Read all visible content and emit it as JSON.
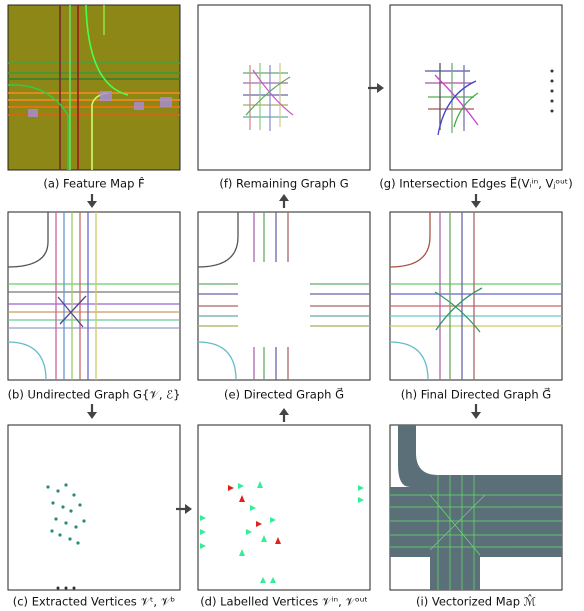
{
  "captions": {
    "a": "(a) Feature Map F̂",
    "f": "(f) Remaining Graph G",
    "g": "(g) Intersection Edges E⃗(Vᵢⁱⁿ, Vⱼᵒᵘᵗ)",
    "b": "(b) Undirected Graph G{𝒱, ℰ}",
    "e": "(e) Directed Graph G⃗",
    "h": "(h) Final Directed Graph G⃗",
    "c": "(c) Extracted Vertices 𝒱ᵗ, 𝒱ᵇ",
    "d": "(d) Labelled Vertices 𝒱ⁱⁿ, 𝒱ᵒᵘᵗ",
    "i": "(i) Vectorized Map ℳ̂"
  }
}
